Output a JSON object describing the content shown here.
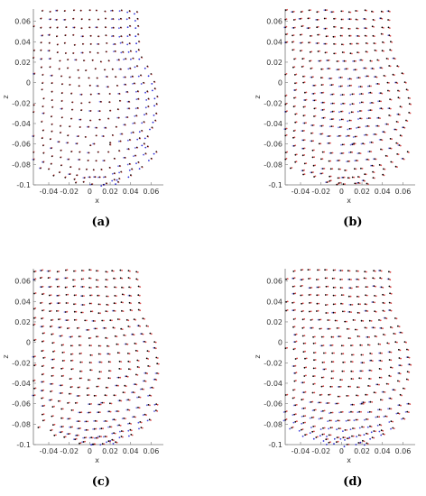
{
  "chart_data": [
    {
      "type": "scatter",
      "panel": "a",
      "caption": "(a)",
      "xlabel": "x",
      "ylabel": "z",
      "xlim": [
        -0.055,
        0.072
      ],
      "ylim": [
        -0.1,
        0.072
      ],
      "xticks": [
        "-0.04",
        "-0.02",
        "0",
        "0.02",
        "0.04",
        "0.06"
      ],
      "yticks": [
        "-0.1",
        "-0.08",
        "-0.06",
        "-0.04",
        "-0.02",
        "0",
        "0.02",
        "0.04",
        "0.06"
      ],
      "grid": false,
      "dominant_overlay": "black",
      "blue_focus": "right-edge",
      "blue_intensity": 0.85,
      "red_intensity": 0.25,
      "series": [
        {
          "name": "",
          "color": "#000000"
        },
        {
          "name": "",
          "color": "#d42020"
        },
        {
          "name": "",
          "color": "#1a1ad6"
        }
      ]
    },
    {
      "type": "scatter",
      "panel": "b",
      "caption": "(b)",
      "xlabel": "x",
      "ylabel": "z",
      "xlim": [
        -0.055,
        0.072
      ],
      "ylim": [
        -0.1,
        0.072
      ],
      "xticks": [
        "-0.04",
        "-0.02",
        "0",
        "0.02",
        "0.04",
        "0.06"
      ],
      "yticks": [
        "-0.1",
        "-0.08",
        "-0.06",
        "-0.04",
        "-0.02",
        "0",
        "0.02",
        "0.04",
        "0.06"
      ],
      "grid": false,
      "dominant_overlay": "red",
      "blue_focus": "center",
      "blue_intensity": 0.55,
      "red_intensity": 0.7,
      "series": [
        {
          "name": "",
          "color": "#000000"
        },
        {
          "name": "",
          "color": "#d42020"
        },
        {
          "name": "",
          "color": "#1a1ad6"
        }
      ]
    },
    {
      "type": "scatter",
      "panel": "c",
      "caption": "(c)",
      "xlabel": "x",
      "ylabel": "z",
      "xlim": [
        -0.055,
        0.072
      ],
      "ylim": [
        -0.1,
        0.072
      ],
      "xticks": [
        "-0.04",
        "-0.02",
        "0",
        "0.02",
        "0.04",
        "0.06"
      ],
      "yticks": [
        "-0.1",
        "-0.08",
        "-0.06",
        "-0.04",
        "-0.02",
        "0",
        "0.02",
        "0.04",
        "0.06"
      ],
      "grid": false,
      "dominant_overlay": "red",
      "blue_focus": "bottom-right",
      "blue_intensity": 0.8,
      "red_intensity": 0.75,
      "series": [
        {
          "name": "",
          "color": "#000000"
        },
        {
          "name": "",
          "color": "#d42020"
        },
        {
          "name": "",
          "color": "#1a1ad6"
        }
      ]
    },
    {
      "type": "scatter",
      "panel": "d",
      "caption": "(d)",
      "xlabel": "x",
      "ylabel": "z",
      "xlim": [
        -0.055,
        0.072
      ],
      "ylim": [
        -0.1,
        0.072
      ],
      "xticks": [
        "-0.04",
        "-0.02",
        "0",
        "0.02",
        "0.04",
        "0.06"
      ],
      "yticks": [
        "-0.1",
        "-0.08",
        "-0.06",
        "-0.04",
        "-0.02",
        "0",
        "0.02",
        "0.04",
        "0.06"
      ],
      "grid": false,
      "dominant_overlay": "red",
      "blue_focus": "bottom",
      "blue_intensity": 0.85,
      "red_intensity": 0.8,
      "series": [
        {
          "name": "",
          "color": "#000000"
        },
        {
          "name": "",
          "color": "#d42020"
        },
        {
          "name": "",
          "color": "#1a1ad6"
        }
      ]
    }
  ]
}
